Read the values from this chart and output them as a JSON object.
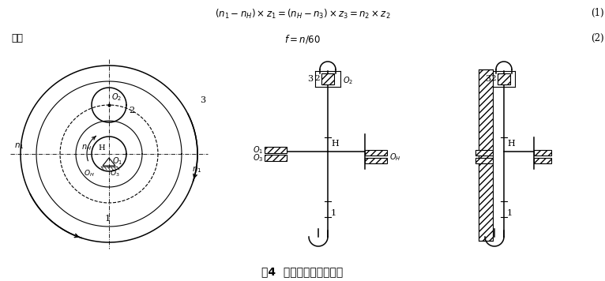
{
  "bg_color": "#ffffff",
  "formula1": "$(n_1 - n_H) \\times z_1 = (n_H - n_3) \\times z_3 = n_2 \\times z_2$",
  "eq1": "(1)",
  "youyou": "又有",
  "formula2": "$f = n/60$",
  "eq2": "(2)",
  "caption": "图4  行星轮系传动比原理"
}
